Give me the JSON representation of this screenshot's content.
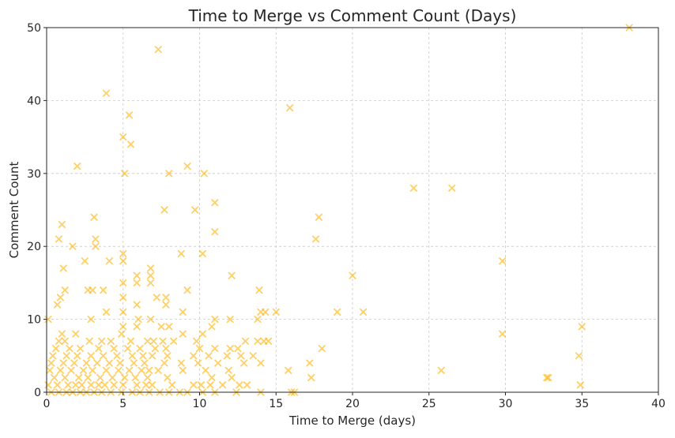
{
  "chart_data": {
    "type": "scatter",
    "title": "Time to Merge vs Comment Count (Days)",
    "xlabel": "Time to Merge (days)",
    "ylabel": "Comment Count",
    "xlim": [
      0,
      40
    ],
    "ylim": [
      0,
      50
    ],
    "xticks": [
      0,
      5,
      10,
      15,
      20,
      25,
      30,
      35,
      40
    ],
    "yticks": [
      0,
      10,
      20,
      30,
      40,
      50
    ],
    "grid": true,
    "marker": "x",
    "color": "#FFB000",
    "series": [
      {
        "points": [
          [
            38.1,
            50
          ],
          [
            7.3,
            47
          ],
          [
            3.9,
            41
          ],
          [
            15.9,
            39
          ],
          [
            5.4,
            38
          ],
          [
            5.0,
            35
          ],
          [
            5.5,
            34
          ],
          [
            2.0,
            31
          ],
          [
            9.2,
            31
          ],
          [
            5.1,
            30
          ],
          [
            8.0,
            30
          ],
          [
            10.3,
            30
          ],
          [
            24.0,
            28
          ],
          [
            26.5,
            28
          ],
          [
            11.0,
            26
          ],
          [
            7.7,
            25
          ],
          [
            9.7,
            25
          ],
          [
            3.1,
            24
          ],
          [
            17.8,
            24
          ],
          [
            1.0,
            23
          ],
          [
            11.0,
            22
          ],
          [
            0.8,
            21
          ],
          [
            3.2,
            21
          ],
          [
            17.6,
            21
          ],
          [
            1.7,
            20
          ],
          [
            3.2,
            20
          ],
          [
            10.2,
            19
          ],
          [
            5.0,
            19
          ],
          [
            8.8,
            19
          ],
          [
            2.5,
            18
          ],
          [
            4.1,
            18
          ],
          [
            5.0,
            18
          ],
          [
            29.8,
            18
          ],
          [
            1.1,
            17
          ],
          [
            6.8,
            17
          ],
          [
            5.9,
            16
          ],
          [
            6.8,
            16
          ],
          [
            12.1,
            16
          ],
          [
            20.0,
            16
          ],
          [
            5.0,
            15
          ],
          [
            5.9,
            15
          ],
          [
            6.8,
            15
          ],
          [
            1.2,
            14
          ],
          [
            2.7,
            14
          ],
          [
            3.0,
            14
          ],
          [
            3.7,
            14
          ],
          [
            9.2,
            14
          ],
          [
            13.9,
            14
          ],
          [
            0.9,
            13
          ],
          [
            5.0,
            13
          ],
          [
            7.2,
            13
          ],
          [
            7.8,
            13
          ],
          [
            0.7,
            12
          ],
          [
            5.9,
            12
          ],
          [
            7.8,
            12
          ],
          [
            3.9,
            11
          ],
          [
            5.0,
            11
          ],
          [
            8.9,
            11
          ],
          [
            14.0,
            11
          ],
          [
            14.3,
            11
          ],
          [
            15.0,
            11
          ],
          [
            19.0,
            11
          ],
          [
            20.7,
            11
          ],
          [
            0.1,
            10
          ],
          [
            2.9,
            10
          ],
          [
            6.0,
            10
          ],
          [
            6.8,
            10
          ],
          [
            11.0,
            10
          ],
          [
            12.0,
            10
          ],
          [
            13.8,
            10
          ],
          [
            5.0,
            9
          ],
          [
            5.9,
            9
          ],
          [
            7.5,
            9
          ],
          [
            8.0,
            9
          ],
          [
            10.8,
            9
          ],
          [
            35.0,
            9
          ],
          [
            1.0,
            8
          ],
          [
            1.9,
            8
          ],
          [
            4.9,
            8
          ],
          [
            8.9,
            8
          ],
          [
            10.2,
            8
          ],
          [
            29.8,
            8
          ],
          [
            0.8,
            7
          ],
          [
            1.2,
            7
          ],
          [
            2.8,
            7
          ],
          [
            3.6,
            7
          ],
          [
            4.2,
            7
          ],
          [
            5.5,
            7
          ],
          [
            6.6,
            7
          ],
          [
            7.0,
            7
          ],
          [
            7.6,
            7
          ],
          [
            8.3,
            7
          ],
          [
            9.8,
            7
          ],
          [
            13.0,
            7
          ],
          [
            13.8,
            7
          ],
          [
            14.2,
            7
          ],
          [
            14.5,
            7
          ],
          [
            0.6,
            6
          ],
          [
            1.5,
            6
          ],
          [
            2.2,
            6
          ],
          [
            3.4,
            6
          ],
          [
            4.4,
            6
          ],
          [
            5.3,
            6
          ],
          [
            6.1,
            6
          ],
          [
            7.1,
            6
          ],
          [
            7.8,
            6
          ],
          [
            10.0,
            6
          ],
          [
            11.0,
            6
          ],
          [
            12.0,
            6
          ],
          [
            12.5,
            6
          ],
          [
            18.0,
            6
          ],
          [
            0.4,
            5
          ],
          [
            1.3,
            5
          ],
          [
            2.0,
            5
          ],
          [
            2.9,
            5
          ],
          [
            3.7,
            5
          ],
          [
            4.6,
            5
          ],
          [
            5.6,
            5
          ],
          [
            6.3,
            5
          ],
          [
            6.9,
            5
          ],
          [
            7.9,
            5
          ],
          [
            9.6,
            5
          ],
          [
            10.6,
            5
          ],
          [
            11.8,
            5
          ],
          [
            12.7,
            5
          ],
          [
            13.5,
            5
          ],
          [
            34.8,
            5
          ],
          [
            0.3,
            4
          ],
          [
            1.1,
            4
          ],
          [
            1.8,
            4
          ],
          [
            2.6,
            4
          ],
          [
            3.3,
            4
          ],
          [
            4.1,
            4
          ],
          [
            4.8,
            4
          ],
          [
            5.7,
            4
          ],
          [
            6.4,
            4
          ],
          [
            7.7,
            4
          ],
          [
            8.8,
            4
          ],
          [
            9.9,
            4
          ],
          [
            11.2,
            4
          ],
          [
            12.9,
            4
          ],
          [
            14.0,
            4
          ],
          [
            17.2,
            4
          ],
          [
            0.2,
            3
          ],
          [
            0.9,
            3
          ],
          [
            1.6,
            3
          ],
          [
            2.4,
            3
          ],
          [
            3.0,
            3
          ],
          [
            3.9,
            3
          ],
          [
            4.7,
            3
          ],
          [
            5.4,
            3
          ],
          [
            6.2,
            3
          ],
          [
            6.7,
            3
          ],
          [
            7.3,
            3
          ],
          [
            8.9,
            3
          ],
          [
            10.4,
            3
          ],
          [
            11.9,
            3
          ],
          [
            15.8,
            3
          ],
          [
            25.8,
            3
          ],
          [
            0.5,
            2
          ],
          [
            1.2,
            2
          ],
          [
            2.1,
            2
          ],
          [
            2.7,
            2
          ],
          [
            3.5,
            2
          ],
          [
            4.3,
            2
          ],
          [
            5.1,
            2
          ],
          [
            5.8,
            2
          ],
          [
            6.6,
            2
          ],
          [
            7.9,
            2
          ],
          [
            10.8,
            2
          ],
          [
            12.1,
            2
          ],
          [
            17.3,
            2
          ],
          [
            32.7,
            2
          ],
          [
            32.8,
            2
          ],
          [
            0.1,
            1
          ],
          [
            0.7,
            1
          ],
          [
            1.4,
            1
          ],
          [
            1.9,
            1
          ],
          [
            2.3,
            1
          ],
          [
            2.9,
            1
          ],
          [
            3.4,
            1
          ],
          [
            3.8,
            1
          ],
          [
            4.4,
            1
          ],
          [
            5.0,
            1
          ],
          [
            5.9,
            1
          ],
          [
            6.5,
            1
          ],
          [
            6.9,
            1
          ],
          [
            8.2,
            1
          ],
          [
            9.6,
            1
          ],
          [
            10.1,
            1
          ],
          [
            10.7,
            1
          ],
          [
            11.5,
            1
          ],
          [
            12.6,
            1
          ],
          [
            13.1,
            1
          ],
          [
            34.9,
            1
          ],
          [
            0.3,
            0
          ],
          [
            0.8,
            0
          ],
          [
            1.3,
            0
          ],
          [
            1.7,
            0
          ],
          [
            2.2,
            0
          ],
          [
            2.6,
            0
          ],
          [
            3.1,
            0
          ],
          [
            3.6,
            0
          ],
          [
            4.2,
            0
          ],
          [
            4.9,
            0
          ],
          [
            5.6,
            0
          ],
          [
            6.1,
            0
          ],
          [
            6.7,
            0
          ],
          [
            7.4,
            0
          ],
          [
            8.0,
            0
          ],
          [
            8.7,
            0
          ],
          [
            9.2,
            0
          ],
          [
            10.2,
            0
          ],
          [
            11.0,
            0
          ],
          [
            12.4,
            0
          ],
          [
            14.0,
            0
          ],
          [
            16.0,
            0
          ],
          [
            16.2,
            0
          ]
        ]
      }
    ]
  }
}
